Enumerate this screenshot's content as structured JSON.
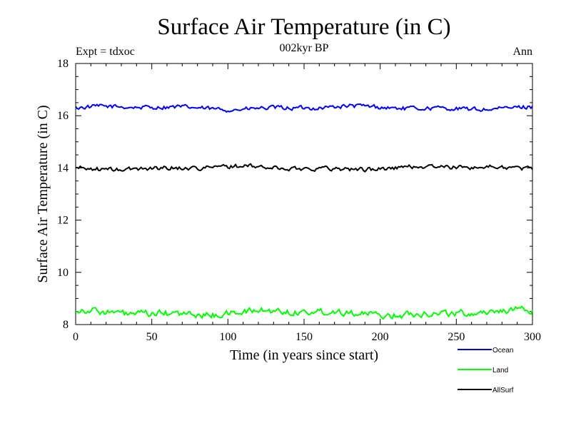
{
  "chart_data": {
    "type": "line",
    "title": "Surface Air Temperature (in C)",
    "subtitle": "002kyr BP",
    "left_label": "Expt = tdxoc",
    "right_label": "Ann",
    "xlabel": "Time (in years since start)",
    "ylabel": "Surface Air Temperature (in C)",
    "xlim": [
      0,
      300
    ],
    "ylim": [
      8,
      18
    ],
    "x_ticks": [
      0,
      50,
      100,
      150,
      200,
      250,
      300
    ],
    "y_ticks": [
      8,
      10,
      12,
      14,
      16,
      18
    ],
    "grid": false,
    "legend_position": "bottom-right",
    "series": [
      {
        "name": "Ocean",
        "color": "#0000ff",
        "mean": 16.3,
        "amplitude": 0.13
      },
      {
        "name": "Land",
        "color": "#00ff00",
        "mean": 8.45,
        "amplitude": 0.2
      },
      {
        "name": "AllSurf",
        "color": "#000000",
        "mean": 14.0,
        "amplitude": 0.13
      }
    ]
  }
}
